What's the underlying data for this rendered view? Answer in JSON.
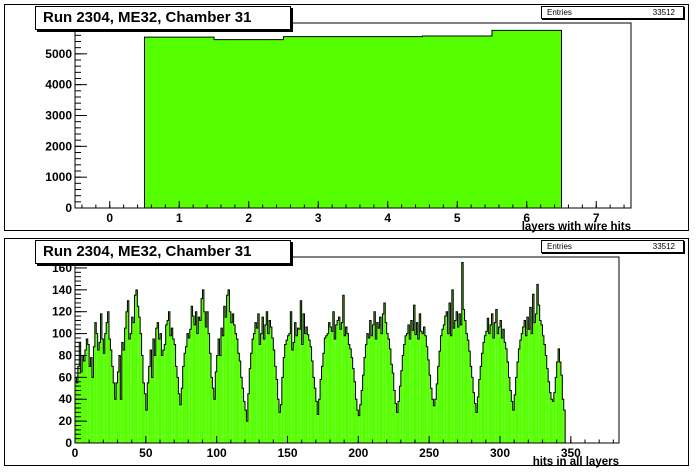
{
  "colors": {
    "fill": "#55ff00",
    "line": "#000000",
    "background": "#ffffff"
  },
  "chart_data": [
    {
      "type": "bar",
      "title": "Run 2304, ME32, Chamber 31",
      "xlabel": "layers with wire hits",
      "ylabel": "",
      "stats": {
        "label": "Entries",
        "value": "33512"
      },
      "xlim": [
        -0.5,
        7.5
      ],
      "ylim": [
        0,
        6000
      ],
      "xticks": [
        0,
        1,
        2,
        3,
        4,
        5,
        6,
        7
      ],
      "yticks": [
        0,
        1000,
        2000,
        3000,
        4000,
        5000,
        6000
      ],
      "bins": [
        {
          "x0": 0.5,
          "x1": 1.5,
          "value": 5540
        },
        {
          "x0": 1.5,
          "x1": 2.5,
          "value": 5460
        },
        {
          "x0": 2.5,
          "x1": 3.5,
          "value": 5560
        },
        {
          "x0": 3.5,
          "x1": 4.5,
          "value": 5560
        },
        {
          "x0": 4.5,
          "x1": 5.5,
          "value": 5580
        },
        {
          "x0": 5.5,
          "x1": 6.5,
          "value": 5760
        }
      ]
    },
    {
      "type": "bar",
      "title": "Run 2304, ME32, Chamber 31",
      "xlabel": "hits in all layers",
      "ylabel": "",
      "stats": {
        "label": "Entries",
        "value": "33512"
      },
      "xlim": [
        0,
        384
      ],
      "ylim": [
        0,
        170
      ],
      "xticks": [
        0,
        50,
        100,
        150,
        200,
        250,
        300,
        350
      ],
      "yticks": [
        0,
        20,
        40,
        60,
        80,
        100,
        120,
        140,
        160
      ],
      "bin_width": 1,
      "values": [
        60,
        55,
        70,
        92,
        65,
        80,
        75,
        85,
        95,
        90,
        70,
        78,
        60,
        88,
        110,
        100,
        85,
        92,
        118,
        95,
        82,
        100,
        110,
        120,
        95,
        85,
        70,
        55,
        40,
        55,
        65,
        80,
        40,
        92,
        85,
        105,
        120,
        130,
        95,
        100,
        115,
        110,
        135,
        140,
        125,
        115,
        100,
        80,
        55,
        45,
        30,
        55,
        70,
        85,
        60,
        95,
        80,
        105,
        110,
        95,
        100,
        80,
        85,
        90,
        108,
        112,
        120,
        98,
        105,
        95,
        90,
        70,
        60,
        45,
        35,
        50,
        70,
        82,
        88,
        100,
        96,
        104,
        125,
        116,
        108,
        120,
        100,
        115,
        112,
        132,
        140,
        120,
        106,
        120,
        100,
        82,
        60,
        50,
        40,
        65,
        80,
        95,
        80,
        105,
        98,
        125,
        115,
        135,
        140,
        120,
        110,
        118,
        108,
        100,
        95,
        82,
        75,
        60,
        50,
        38,
        30,
        20,
        45,
        68,
        82,
        95,
        100,
        110,
        105,
        118,
        90,
        100,
        115,
        95,
        108,
        120,
        100,
        112,
        106,
        96,
        85,
        70,
        58,
        40,
        28,
        35,
        60,
        78,
        90,
        94,
        98,
        100,
        120,
        85,
        92,
        110,
        98,
        105,
        104,
        130,
        90,
        118,
        100,
        106,
        99,
        94,
        88,
        75,
        60,
        50,
        38,
        26,
        40,
        58,
        70,
        82,
        96,
        98,
        100,
        110,
        106,
        102,
        120,
        95,
        108,
        112,
        115,
        104,
        110,
        135,
        98,
        106,
        100,
        90,
        86,
        78,
        68,
        56,
        40,
        30,
        25,
        35,
        48,
        62,
        78,
        90,
        100,
        96,
        112,
        98,
        108,
        120,
        95,
        110,
        105,
        115,
        100,
        118,
        128,
        110,
        100,
        95,
        86,
        72,
        64,
        48,
        36,
        28,
        38,
        52,
        66,
        80,
        90,
        98,
        100,
        108,
        95,
        112,
        103,
        126,
        99,
        110,
        95,
        118,
        102,
        100,
        106,
        98,
        88,
        76,
        62,
        50,
        40,
        34,
        40,
        54,
        70,
        84,
        98,
        104,
        108,
        116,
        120,
        100,
        128,
        98,
        140,
        105,
        112,
        120,
        106,
        118,
        108,
        165,
        122,
        112,
        100,
        94,
        84,
        70,
        60,
        46,
        36,
        28,
        42,
        58,
        70,
        82,
        92,
        98,
        102,
        114,
        100,
        108,
        118,
        96,
        110,
        122,
        100,
        106,
        112,
        96,
        104,
        92,
        86,
        74,
        60,
        48,
        38,
        30,
        44,
        60,
        74,
        86,
        94,
        100,
        106,
        112,
        98,
        115,
        104,
        124,
        100,
        136,
        110,
        118,
        145,
        126,
        112,
        108,
        98,
        90,
        80,
        68,
        56,
        46,
        40,
        38,
        46,
        60,
        74,
        86,
        74,
        62,
        40,
        30
      ]
    }
  ]
}
